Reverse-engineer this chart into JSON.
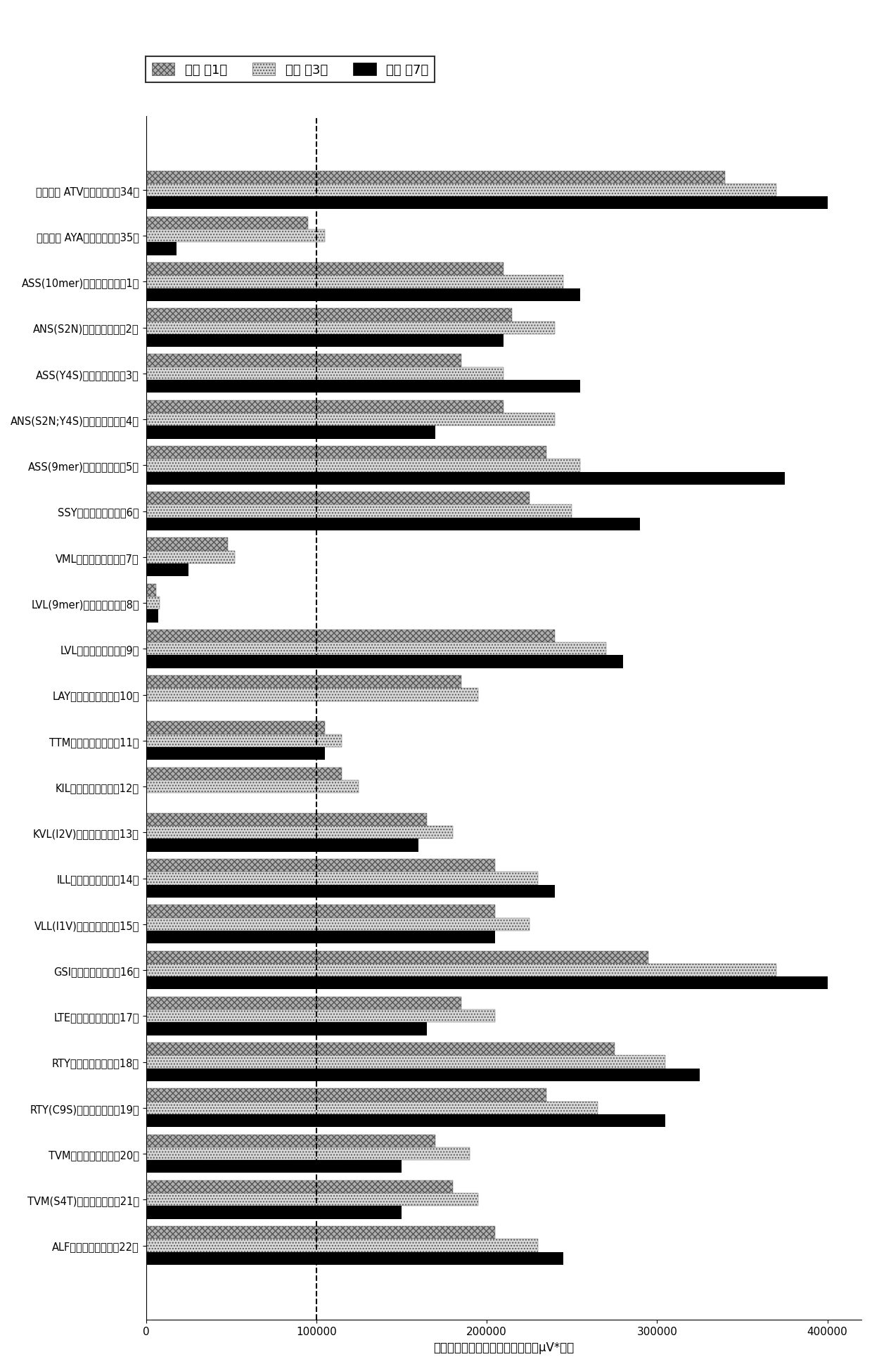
{
  "categories": [
    "阳性对照 ATV（序列编号：34）",
    "阴性对照 AYA（序列编号：35）",
    "ASS(10mer)　（序列编号：1）",
    "ANS(S2N)　（序列编号：2）",
    "ASS(Y4S)　（序列编号：3）",
    "ANS(S2N;Y4S)　（序列编号：4）",
    "ASS(9mer)　（序列编号：5）",
    "SSY　　（序列编号：6）",
    "VML　　（序列编号：7）",
    "LVL(9mer)　（序列编号：8）",
    "LVL　　（序列编号：9）",
    "LAY　　（序列编号：10）",
    "TTM　　（序列编号：11）",
    "KIL　　（序列编号：12）",
    "KVL(I2V)　（序列编号：13）",
    "ILL　　（序列编号：14）",
    "VLL(I1V)　（序列编号：15）",
    "GSI　　（序列编号：16）",
    "LTE　　（序列编号：17）",
    "RTY　　（序列编号：18）",
    "RTY(C9S)　（序列编号：19）",
    "TVM　　（序列编号：20）",
    "TVM(S4T)　（序列编号：21）",
    "ALF　　（序列编号：22）"
  ],
  "day1": [
    340000,
    95000,
    210000,
    215000,
    185000,
    210000,
    235000,
    225000,
    48000,
    6000,
    240000,
    185000,
    105000,
    115000,
    165000,
    205000,
    205000,
    295000,
    185000,
    275000,
    235000,
    170000,
    180000,
    205000
  ],
  "day3": [
    370000,
    105000,
    245000,
    240000,
    210000,
    240000,
    255000,
    250000,
    52000,
    8000,
    270000,
    195000,
    115000,
    125000,
    180000,
    230000,
    225000,
    370000,
    205000,
    305000,
    265000,
    190000,
    195000,
    230000
  ],
  "day7": [
    400000,
    18000,
    255000,
    210000,
    255000,
    170000,
    375000,
    290000,
    25000,
    7000,
    280000,
    0,
    105000,
    0,
    160000,
    240000,
    205000,
    400000,
    165000,
    325000,
    305000,
    150000,
    150000,
    245000
  ],
  "dashed_line_x": 100000,
  "xlim": [
    0,
    420000
  ],
  "xlabel": "凝胶过滤柱分析中的单体峰面积（μV*秒）",
  "legend_labels": [
    "折疊 第1天",
    "折疊 第3天",
    "折疊 第7天"
  ],
  "color_day1": "#b0b0b0",
  "color_day3": "#d8d8d8",
  "color_day7": "#000000",
  "bar_height": 0.28,
  "xticks": [
    0,
    100000,
    200000,
    300000,
    400000
  ],
  "xtick_labels": [
    "0",
    "100000",
    "200000",
    "300000",
    "400000"
  ],
  "background_color": "#ffffff"
}
